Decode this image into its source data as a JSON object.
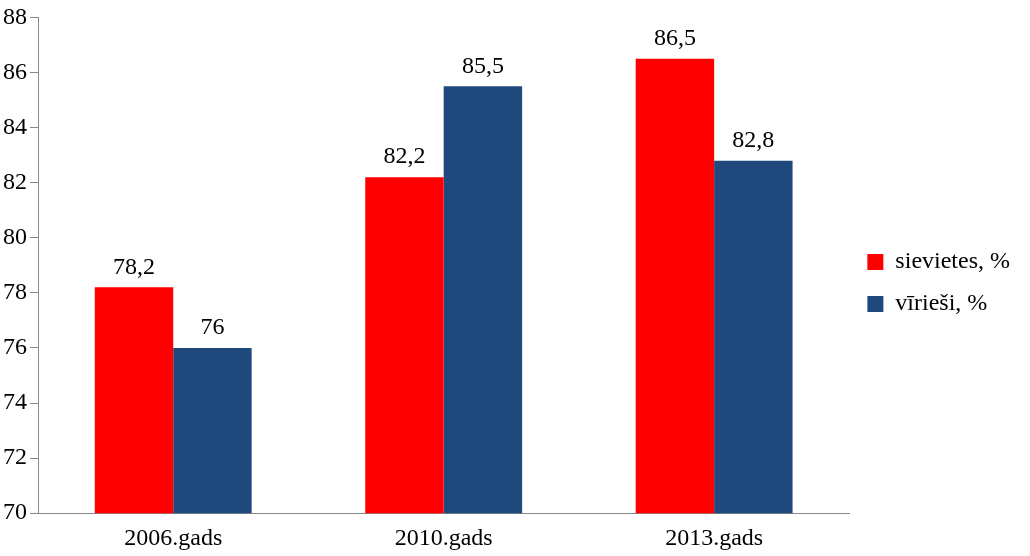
{
  "chart_data": {
    "type": "bar",
    "categories": [
      "2006.gads",
      "2010.gads",
      "2013.gads"
    ],
    "series": [
      {
        "name": "sievietes, %",
        "color": "#ff0000",
        "values": [
          78.2,
          82.2,
          86.5
        ],
        "value_labels": [
          "78,2",
          "82,2",
          "86,5"
        ]
      },
      {
        "name": "vīrieši, %",
        "color": "#1f497d",
        "values": [
          76,
          85.5,
          82.8
        ],
        "value_labels": [
          "76",
          "85,5",
          "82,8"
        ]
      }
    ],
    "ylim": [
      70,
      88
    ],
    "yticks": [
      70,
      72,
      74,
      76,
      78,
      80,
      82,
      84,
      86,
      88
    ],
    "grid": false,
    "legend": "right"
  }
}
